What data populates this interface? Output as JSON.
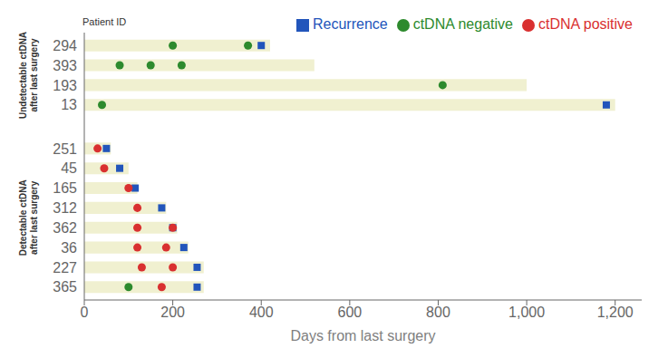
{
  "chart_data": {
    "type": "swimmer",
    "orientation": "horizontal",
    "xlabel": "Days from last surgery",
    "ylabel": "Patient ID",
    "xlim": [
      0,
      1260
    ],
    "xticks": [
      0,
      200,
      400,
      600,
      800,
      {
        "value": 1000,
        "label": "1,000"
      },
      {
        "value": 1200,
        "label": "1,200"
      }
    ],
    "color": "#f0f0d0",
    "grid": false,
    "legend": "upper right",
    "groups": [
      {
        "name": "Undetectable ctDNA\nafter last surgery",
        "categories": [
          "294",
          "393",
          "193",
          "13"
        ],
        "values": [
          420,
          520,
          1000,
          1200
        ]
      },
      {
        "name": "Detectable ctDNA\nafter last surgery",
        "categories": [
          "251",
          "45",
          "165",
          "312",
          "362",
          "36",
          "227",
          "365"
        ],
        "values": [
          60,
          100,
          120,
          185,
          210,
          235,
          270,
          270
        ]
      }
    ],
    "series": [
      {
        "name": "Recurrence",
        "color": "#2255bb",
        "marker": "square",
        "values": [
          [
            400
          ],
          [],
          [],
          [
            1180
          ],
          [
            50
          ],
          [
            80
          ],
          [
            115
          ],
          [
            175
          ],
          [
            200
          ],
          [
            225
          ],
          [
            255
          ],
          [
            255
          ]
        ]
      },
      {
        "name": "ctDNA positive",
        "color": "#d93030",
        "marker": "circle",
        "values": [
          [],
          [],
          [],
          [],
          [
            30
          ],
          [
            45
          ],
          [
            100
          ],
          [
            120
          ],
          [
            120,
            200
          ],
          [
            120,
            185
          ],
          [
            130,
            200
          ],
          [
            175
          ]
        ]
      },
      {
        "name": "ctDNA negative",
        "color": "#2d8a2d",
        "marker": "circle",
        "values": [
          [
            200,
            370
          ],
          [
            80,
            150,
            220
          ],
          [
            810
          ],
          [
            40
          ],
          [],
          [],
          [],
          [],
          [],
          [],
          [],
          [
            100
          ]
        ]
      }
    ]
  }
}
